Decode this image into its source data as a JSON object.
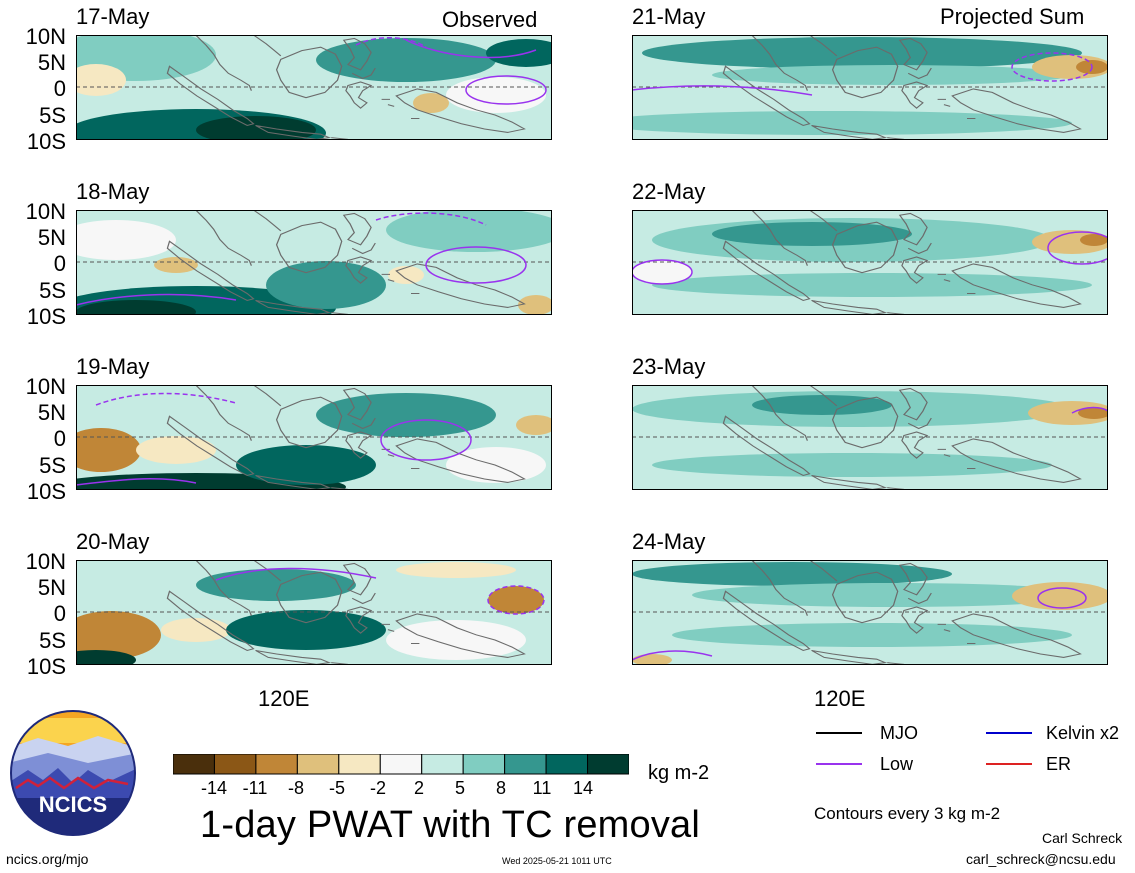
{
  "headers": {
    "left": "Observed",
    "right": "Projected Sum"
  },
  "lat_labels": [
    "10N",
    "5N",
    "0",
    "5S",
    "10S"
  ],
  "lon_label": "120E",
  "panels": [
    {
      "date": "17-May",
      "column": "observed"
    },
    {
      "date": "18-May",
      "column": "observed"
    },
    {
      "date": "19-May",
      "column": "observed"
    },
    {
      "date": "20-May",
      "column": "observed"
    },
    {
      "date": "21-May",
      "column": "projected"
    },
    {
      "date": "22-May",
      "column": "projected"
    },
    {
      "date": "23-May",
      "column": "projected"
    },
    {
      "date": "24-May",
      "column": "projected"
    }
  ],
  "colorbar": {
    "labels": [
      "-14",
      "-11",
      "-8",
      "-5",
      "-2",
      "2",
      "5",
      "8",
      "11",
      "14"
    ],
    "colors": [
      "#4a2f0c",
      "#8b5716",
      "#c08637",
      "#dfc07c",
      "#f6e8c2",
      "#f7f7f7",
      "#c6ebe3",
      "#80cdc1",
      "#35978f",
      "#01665e",
      "#003c30"
    ],
    "units": "kg m-2"
  },
  "legend": {
    "items": [
      {
        "label": "MJO",
        "color": "#000000"
      },
      {
        "label": "Kelvin x2",
        "color": "#0000cc"
      },
      {
        "label": "Low",
        "color": "#9933ee"
      },
      {
        "label": "ER",
        "color": "#dd2222"
      }
    ],
    "note": "Contours every 3 kg m-2"
  },
  "title": "1-day PWAT with TC removal",
  "logo_text": "NCICS",
  "footer": {
    "url": "ncics.org/mjo",
    "timestamp": "Wed 2025-05-21 1011 UTC",
    "author": "Carl Schreck",
    "email": "carl_schreck@ncsu.edu"
  }
}
